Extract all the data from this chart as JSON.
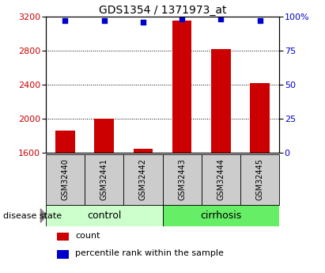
{
  "title": "GDS1354 / 1371973_at",
  "samples": [
    "GSM32440",
    "GSM32441",
    "GSM32442",
    "GSM32443",
    "GSM32444",
    "GSM32445"
  ],
  "count_values": [
    1860,
    2000,
    1650,
    3150,
    2820,
    2420
  ],
  "percentile_values": [
    97,
    97,
    96,
    98,
    98,
    97
  ],
  "ylim_left": [
    1600,
    3200
  ],
  "ylim_right": [
    0,
    100
  ],
  "yticks_left": [
    1600,
    2000,
    2400,
    2800,
    3200
  ],
  "yticks_right": [
    0,
    25,
    50,
    75,
    100
  ],
  "right_tick_labels": [
    "0",
    "25",
    "50",
    "75",
    "100%"
  ],
  "bar_color": "#cc0000",
  "dot_color": "#0000cc",
  "control_bg": "#ccffcc",
  "cirrhosis_bg": "#66ee66",
  "sample_bg": "#cccccc",
  "title_fontsize": 10,
  "tick_fontsize": 8,
  "group_label_fontsize": 9,
  "legend_fontsize": 8
}
